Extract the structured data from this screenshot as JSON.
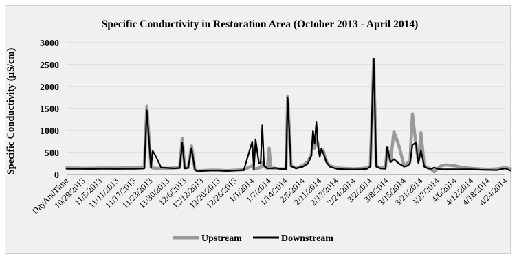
{
  "chart_data": {
    "type": "line",
    "title": "Specific Conductivity in Restoration Area (October 2013 - April 2014)",
    "ylabel": "Specific Conductivity (µS/cm)",
    "xlabel": "",
    "ylim": [
      0,
      3000
    ],
    "yticks": [
      "0",
      "500",
      "1000",
      "1500",
      "2000",
      "2500",
      "3000"
    ],
    "grid": "horizontal",
    "legend": "bottom",
    "x_tick_labels": [
      "DayAndTime",
      "10/29/2013",
      "11/5/2013",
      "11/11/2013",
      "11/17/2013",
      "11/23/2013",
      "11/30/2013",
      "12/6/2013",
      "12/12/2013",
      "12/20/2013",
      "12/26/2013",
      "1/1/2014",
      "1/7/2014",
      "1/14/2014",
      "2/5/2014",
      "2/11/2014",
      "2/17/2014",
      "2/24/2014",
      "3/2/2014",
      "3/8/2014",
      "3/15/2014",
      "3/21/2014",
      "3/27/2014",
      "4/6/2014",
      "4/12/2014",
      "4/18/2014",
      "4/24/2014"
    ],
    "x": [
      0,
      0.5,
      1,
      1.5,
      2,
      2.5,
      3,
      3.5,
      4,
      4.5,
      4.6,
      4.75,
      5,
      5.1,
      5.3,
      5.6,
      6,
      6.4,
      6.7,
      6.85,
      7,
      7.2,
      7.4,
      7.6,
      7.75,
      8,
      8.5,
      9,
      9.5,
      10,
      10.5,
      11,
      11.1,
      11.2,
      11.4,
      11.5,
      11.6,
      11.7,
      11.9,
      12,
      12.1,
      12.4,
      12.6,
      13,
      13.1,
      13.3,
      13.6,
      14,
      14.3,
      14.5,
      14.6,
      14.7,
      14.8,
      14.9,
      15,
      15.1,
      15.2,
      15.4,
      15.6,
      16,
      16.5,
      17,
      17.5,
      17.8,
      18,
      18.2,
      18.35,
      18.6,
      18.9,
      19,
      19.2,
      19.4,
      19.7,
      20,
      20.2,
      20.35,
      20.5,
      20.7,
      20.85,
      21,
      21.2,
      21.4,
      21.6,
      21.8,
      22,
      22.2,
      22.5,
      23,
      23.5,
      24,
      24.5,
      25,
      25.5,
      26,
      26.3
    ],
    "series": [
      {
        "name": "Upstream",
        "color": "#9a9a9a",
        "values": [
          150,
          148,
          146,
          145,
          150,
          150,
          148,
          152,
          150,
          155,
          160,
          1550,
          170,
          150,
          140,
          145,
          140,
          150,
          160,
          820,
          150,
          160,
          650,
          120,
          80,
          90,
          100,
          100,
          90,
          100,
          110,
          200,
          120,
          130,
          150,
          160,
          280,
          180,
          140,
          600,
          150,
          140,
          130,
          130,
          1780,
          200,
          150,
          200,
          300,
          450,
          720,
          600,
          800,
          700,
          500,
          560,
          550,
          300,
          200,
          150,
          140,
          130,
          140,
          150,
          200,
          2620,
          200,
          150,
          160,
          620,
          300,
          980,
          650,
          200,
          260,
          300,
          1380,
          700,
          300,
          950,
          200,
          160,
          120,
          60,
          140,
          200,
          220,
          200,
          160,
          140,
          130,
          120,
          130,
          160,
          130
        ]
      },
      {
        "name": "Downstream",
        "color": "#000000",
        "values": [
          130,
          132,
          130,
          128,
          132,
          130,
          128,
          132,
          130,
          135,
          140,
          1460,
          150,
          540,
          400,
          160,
          150,
          140,
          150,
          720,
          140,
          150,
          600,
          110,
          70,
          80,
          90,
          90,
          80,
          90,
          100,
          750,
          120,
          800,
          250,
          280,
          1120,
          200,
          140,
          140,
          140,
          150,
          130,
          120,
          1750,
          190,
          140,
          180,
          250,
          420,
          1000,
          700,
          1200,
          650,
          400,
          580,
          500,
          280,
          180,
          130,
          120,
          115,
          120,
          130,
          180,
          2640,
          180,
          140,
          130,
          620,
          280,
          350,
          250,
          180,
          200,
          250,
          680,
          720,
          260,
          550,
          180,
          140,
          130,
          160,
          130,
          120,
          120,
          120,
          120,
          120,
          110,
          105,
          100,
          140,
          90
        ]
      }
    ]
  }
}
